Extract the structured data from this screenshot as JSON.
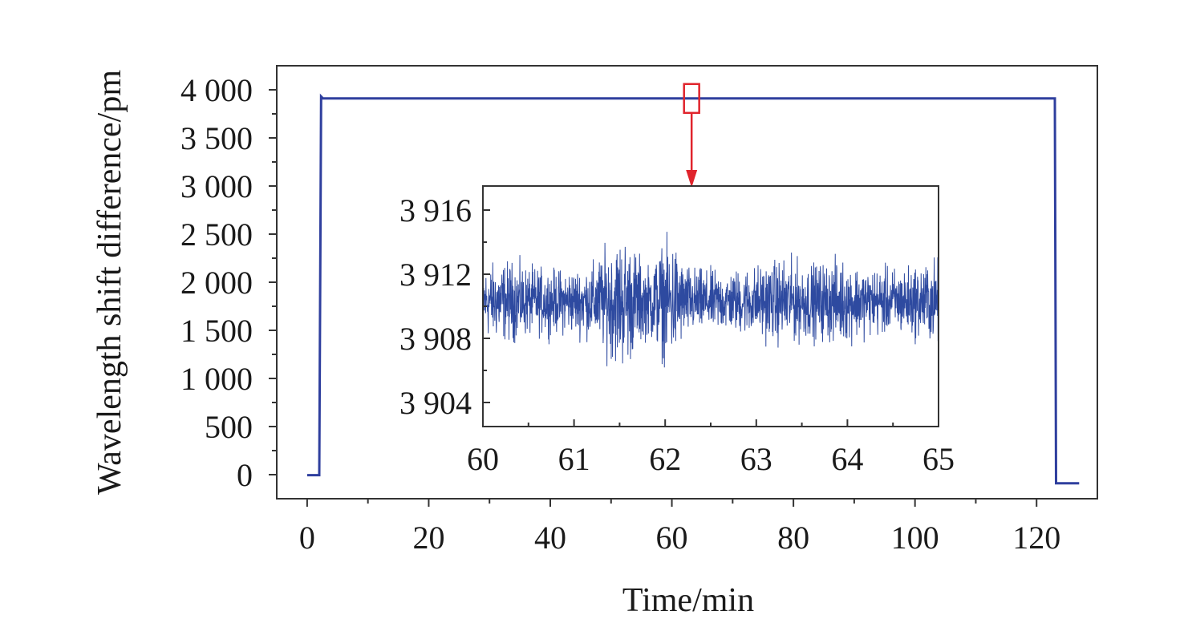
{
  "chart_data": [
    {
      "type": "line",
      "xlabel": "Time/min",
      "ylabel": "Wavelength shift difference/pm",
      "xlim": [
        -5,
        130
      ],
      "ylim": [
        -250,
        4250
      ],
      "xticks": [
        0,
        20,
        40,
        60,
        80,
        100,
        120
      ],
      "xtick_labels": [
        "0",
        "20",
        "40",
        "60",
        "80",
        "100",
        "120"
      ],
      "yticks": [
        0,
        500,
        1000,
        1500,
        2000,
        2500,
        3000,
        3500,
        4000
      ],
      "ytick_labels": [
        "0",
        "500",
        "1 000",
        "1 500",
        "2 000",
        "2 500",
        "3 000",
        "3 500",
        "4 000"
      ],
      "grid": false,
      "series": [
        {
          "color": "#2f3f9e",
          "x": [
            0,
            2,
            2.3,
            2.6,
            123,
            123.2,
            127
          ],
          "y": [
            -5,
            -5,
            3930,
            3910,
            3910,
            -90,
            -90
          ]
        }
      ]
    },
    {
      "type": "line",
      "subplot": "inset",
      "xlim": [
        60,
        65
      ],
      "ylim": [
        3902.5,
        3917.5
      ],
      "xticks": [
        60,
        61,
        62,
        63,
        64,
        65
      ],
      "xtick_labels": [
        "60",
        "61",
        "62",
        "63",
        "64",
        "65"
      ],
      "yticks": [
        3904,
        3908,
        3912,
        3916
      ],
      "ytick_labels": [
        "3 904",
        "3 908",
        "3 912",
        "3 916"
      ],
      "grid": false,
      "series": [
        {
          "color": "#2e4aa0",
          "mean": 3910.3,
          "x_range": [
            60,
            65
          ],
          "noise_envelope": [
            [
              60.0,
              2.5
            ],
            [
              60.3,
              2.8
            ],
            [
              60.5,
              2.4
            ],
            [
              60.8,
              2.2
            ],
            [
              61.0,
              2.3
            ],
            [
              61.2,
              2.6
            ],
            [
              61.4,
              4.0
            ],
            [
              61.55,
              4.6
            ],
            [
              61.7,
              3.4
            ],
            [
              61.8,
              2.4
            ],
            [
              61.95,
              3.8
            ],
            [
              62.1,
              4.3
            ],
            [
              62.2,
              2.6
            ],
            [
              62.4,
              2.2
            ],
            [
              62.7,
              2.1
            ],
            [
              63.0,
              2.5
            ],
            [
              63.3,
              3.0
            ],
            [
              63.6,
              2.6
            ],
            [
              63.9,
              2.9
            ],
            [
              64.2,
              2.4
            ],
            [
              64.5,
              2.3
            ],
            [
              64.8,
              2.6
            ],
            [
              65.0,
              3.0
            ]
          ]
        }
      ]
    },
    {
      "type": "annotation",
      "marker": "zoom-rectangle-with-arrow",
      "color": "#e0242c",
      "x_range": [
        62,
        64.5
      ],
      "y_range": [
        3760,
        4060
      ]
    }
  ]
}
